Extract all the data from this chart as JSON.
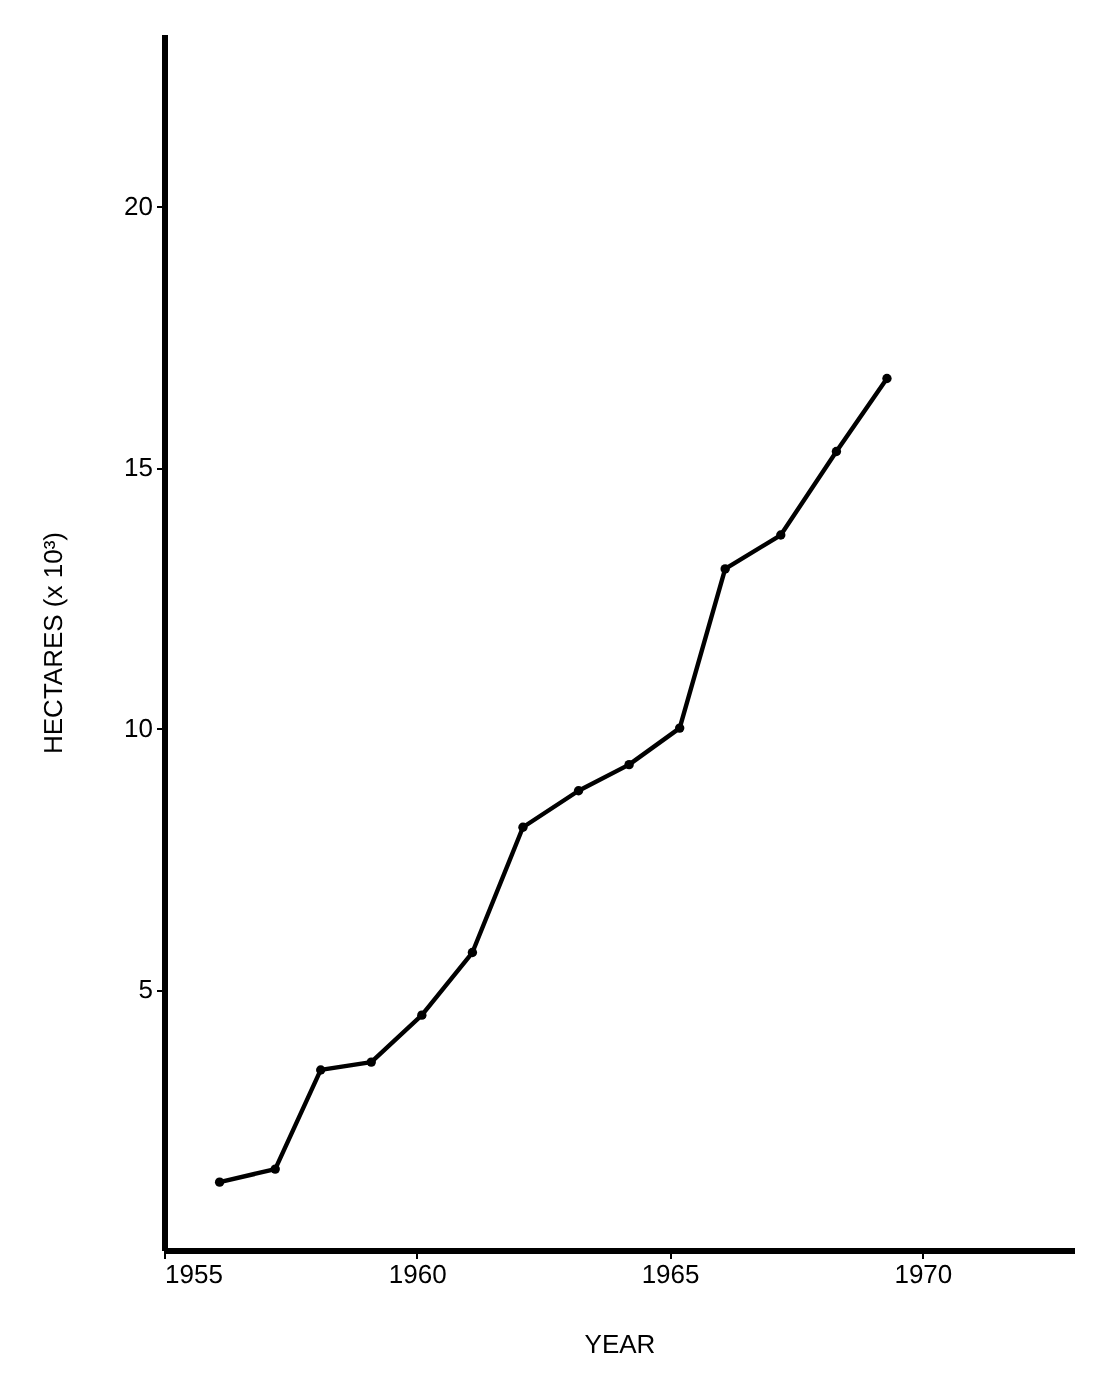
{
  "chart_data": {
    "type": "line",
    "xlabel": "YEAR",
    "ylabel": "HECTARES  (x 10³)",
    "x": [
      1956.1,
      1957.2,
      1958.1,
      1959.1,
      1960.1,
      1961.1,
      1962.1,
      1963.2,
      1964.2,
      1965.2,
      1966.1,
      1967.2,
      1968.3,
      1969.3
    ],
    "series": [
      {
        "color": "#000000",
        "values": [
          1.3,
          1.55,
          3.45,
          3.6,
          4.5,
          5.7,
          8.1,
          8.8,
          9.3,
          10.0,
          13.05,
          13.7,
          15.3,
          16.7
        ]
      }
    ],
    "xlim": [
      1955,
      1973
    ],
    "xticks": [
      1955,
      1960,
      1965,
      1970
    ],
    "ylim": [
      0,
      23.3
    ],
    "yticks": [
      5,
      10,
      15,
      20
    ],
    "grid": false,
    "legend": false,
    "marker": "circle",
    "line_style": "solid"
  }
}
